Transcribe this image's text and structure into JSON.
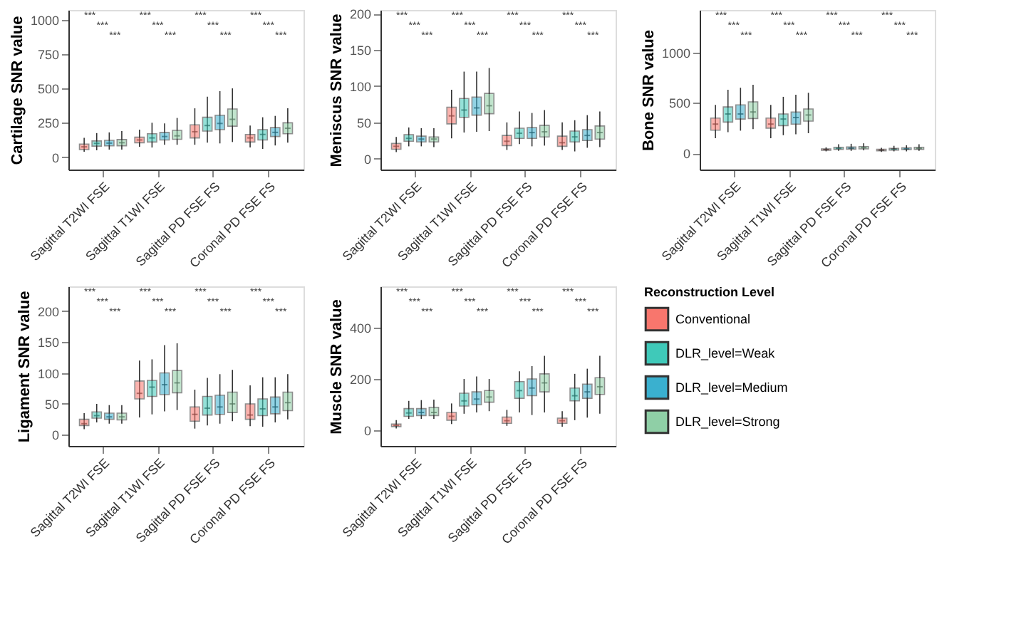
{
  "chart_data": [
    {
      "type": "box",
      "ylabel": "Cartilage SNR value",
      "categories": [
        "Sagittal T2WI FSE",
        "Sagittal T1WI FSE",
        "Sagittal PD FSE FS",
        "Coronal PD FSE FS"
      ],
      "ylim": [
        -90,
        1070
      ],
      "yticks": [
        0,
        250,
        500,
        750,
        1000
      ],
      "grid": false,
      "annotations": [
        "***",
        "***",
        "***",
        "***",
        "***",
        "***",
        "***",
        "***",
        "***",
        "***",
        "***",
        "***"
      ],
      "series": [
        {
          "color": "#f8766d",
          "boxes": [
            {
              "low": 40,
              "q1": 55,
              "median": 75,
              "q3": 95,
              "high": 140
            },
            {
              "low": 75,
              "q1": 105,
              "median": 125,
              "q3": 145,
              "high": 200
            },
            {
              "low": 90,
              "q1": 140,
              "median": 185,
              "q3": 235,
              "high": 355
            },
            {
              "low": 70,
              "q1": 110,
              "median": 140,
              "q3": 165,
              "high": 230
            }
          ]
        },
        {
          "color": "#3fc9b9",
          "boxes": [
            {
              "low": 50,
              "q1": 80,
              "median": 100,
              "q3": 118,
              "high": 175
            },
            {
              "low": 70,
              "q1": 110,
              "median": 140,
              "q3": 170,
              "high": 250
            },
            {
              "low": 105,
              "q1": 190,
              "median": 230,
              "q3": 290,
              "high": 440
            },
            {
              "low": 60,
              "q1": 125,
              "median": 165,
              "q3": 200,
              "high": 290
            }
          ]
        },
        {
          "color": "#3ab0cf",
          "boxes": [
            {
              "low": 55,
              "q1": 82,
              "median": 102,
              "q3": 122,
              "high": 180
            },
            {
              "low": 90,
              "q1": 125,
              "median": 150,
              "q3": 180,
              "high": 245
            },
            {
              "low": 100,
              "q1": 200,
              "median": 245,
              "q3": 305,
              "high": 480
            },
            {
              "low": 85,
              "q1": 150,
              "median": 180,
              "q3": 215,
              "high": 300
            }
          ]
        },
        {
          "color": "#8fcfa6",
          "boxes": [
            {
              "low": 55,
              "q1": 83,
              "median": 105,
              "q3": 128,
              "high": 190
            },
            {
              "low": 90,
              "q1": 130,
              "median": 155,
              "q3": 195,
              "high": 285
            },
            {
              "low": 110,
              "q1": 225,
              "median": 275,
              "q3": 350,
              "high": 500
            },
            {
              "low": 105,
              "q1": 170,
              "median": 210,
              "q3": 250,
              "high": 355
            }
          ]
        }
      ]
    },
    {
      "type": "box",
      "ylabel": "Meniscus SNR value",
      "categories": [
        "Sagittal T2WI FSE",
        "Sagittal T1WI FSE",
        "Sagittal PD FSE FS",
        "Coronal PD FSE FS"
      ],
      "ylim": [
        -15,
        205
      ],
      "yticks": [
        0,
        50,
        100,
        150,
        200
      ],
      "grid": false,
      "annotations": [
        "***",
        "***",
        "***",
        "***",
        "***",
        "***",
        "***",
        "***",
        "***",
        "***",
        "***",
        "***"
      ],
      "series": [
        {
          "color": "#f8766d",
          "boxes": [
            {
              "low": 9,
              "q1": 13,
              "median": 17,
              "q3": 21,
              "high": 30
            },
            {
              "low": 28,
              "q1": 48,
              "median": 59,
              "q3": 71,
              "high": 95
            },
            {
              "low": 12,
              "q1": 18,
              "median": 24,
              "q3": 32,
              "high": 50
            },
            {
              "low": 12,
              "q1": 17,
              "median": 22,
              "q3": 31,
              "high": 50
            }
          ]
        },
        {
          "color": "#3fc9b9",
          "boxes": [
            {
              "low": 17,
              "q1": 24,
              "median": 28,
              "q3": 33,
              "high": 43
            },
            {
              "low": 36,
              "q1": 57,
              "median": 67,
              "q3": 83,
              "high": 120
            },
            {
              "low": 20,
              "q1": 28,
              "median": 35,
              "q3": 42,
              "high": 65
            },
            {
              "low": 10,
              "q1": 23,
              "median": 30,
              "q3": 38,
              "high": 53
            }
          ]
        },
        {
          "color": "#3ab0cf",
          "boxes": [
            {
              "low": 17,
              "q1": 23,
              "median": 27,
              "q3": 31,
              "high": 42
            },
            {
              "low": 37,
              "q1": 60,
              "median": 70,
              "q3": 85,
              "high": 120
            },
            {
              "low": 17,
              "q1": 28,
              "median": 36,
              "q3": 43,
              "high": 63
            },
            {
              "low": 15,
              "q1": 25,
              "median": 32,
              "q3": 40,
              "high": 60
            }
          ]
        },
        {
          "color": "#8fcfa6",
          "boxes": [
            {
              "low": 16,
              "q1": 23,
              "median": 27,
              "q3": 30,
              "high": 42
            },
            {
              "low": 38,
              "q1": 62,
              "median": 73,
              "q3": 90,
              "high": 125
            },
            {
              "low": 18,
              "q1": 30,
              "median": 37,
              "q3": 46,
              "high": 67
            },
            {
              "low": 16,
              "q1": 27,
              "median": 36,
              "q3": 45,
              "high": 65
            }
          ]
        }
      ]
    },
    {
      "type": "box",
      "ylabel": "Bone SNR value",
      "categories": [
        "Sagittal T2WI FSE",
        "Sagittal T1WI FSE",
        "Sagittal PD FSE FS",
        "Coronal PD FSE FS"
      ],
      "ylim": [
        -160,
        1420
      ],
      "yticks": [
        0,
        500,
        1000
      ],
      "grid": false,
      "annotations": [
        "***",
        "***",
        "***",
        "***",
        "***",
        "***",
        "***",
        "***",
        "***",
        "***",
        "***",
        "***"
      ],
      "series": [
        {
          "color": "#f8766d",
          "boxes": [
            {
              "low": 150,
              "q1": 230,
              "median": 290,
              "q3": 350,
              "high": 480
            },
            {
              "low": 150,
              "q1": 250,
              "median": 290,
              "q3": 350,
              "high": 480
            },
            {
              "low": 20,
              "q1": 30,
              "median": 38,
              "q3": 45,
              "high": 60
            },
            {
              "low": 15,
              "q1": 25,
              "median": 33,
              "q3": 40,
              "high": 55
            }
          ]
        },
        {
          "color": "#3fc9b9",
          "boxes": [
            {
              "low": 210,
              "q1": 310,
              "median": 390,
              "q3": 460,
              "high": 630
            },
            {
              "low": 180,
              "q1": 275,
              "median": 340,
              "q3": 390,
              "high": 560
            },
            {
              "low": 25,
              "q1": 40,
              "median": 50,
              "q3": 60,
              "high": 90
            },
            {
              "low": 20,
              "q1": 33,
              "median": 42,
              "q3": 50,
              "high": 75
            }
          ]
        },
        {
          "color": "#3ab0cf",
          "boxes": [
            {
              "low": 225,
              "q1": 340,
              "median": 390,
              "q3": 480,
              "high": 650
            },
            {
              "low": 190,
              "q1": 290,
              "median": 355,
              "q3": 410,
              "high": 580
            },
            {
              "low": 25,
              "q1": 42,
              "median": 52,
              "q3": 63,
              "high": 95
            },
            {
              "low": 20,
              "q1": 37,
              "median": 45,
              "q3": 55,
              "high": 80
            }
          ]
        },
        {
          "color": "#8fcfa6",
          "boxes": [
            {
              "low": 240,
              "q1": 345,
              "median": 410,
              "q3": 510,
              "high": 680
            },
            {
              "low": 200,
              "q1": 320,
              "median": 380,
              "q3": 440,
              "high": 600
            },
            {
              "low": 30,
              "q1": 45,
              "median": 57,
              "q3": 68,
              "high": 100
            },
            {
              "low": 25,
              "q1": 40,
              "median": 50,
              "q3": 60,
              "high": 90
            }
          ]
        }
      ]
    },
    {
      "type": "box",
      "ylabel": "Ligament SNR value",
      "categories": [
        "Sagittal T2WI FSE",
        "Sagittal T1WI FSE",
        "Sagittal PD FSE FS",
        "Coronal PD FSE FS"
      ],
      "ylim": [
        -18,
        240
      ],
      "yticks": [
        0,
        50,
        100,
        150,
        200
      ],
      "grid": false,
      "annotations": [
        "***",
        "***",
        "***",
        "***",
        "***",
        "***",
        "***",
        "***",
        "***",
        "***",
        "***",
        "***"
      ],
      "series": [
        {
          "color": "#f8766d",
          "boxes": [
            {
              "low": 9,
              "q1": 15,
              "median": 18,
              "q3": 25,
              "high": 35
            },
            {
              "low": 28,
              "q1": 58,
              "median": 67,
              "q3": 87,
              "high": 120
            },
            {
              "low": 10,
              "q1": 22,
              "median": 33,
              "q3": 45,
              "high": 73
            },
            {
              "low": 14,
              "q1": 25,
              "median": 32,
              "q3": 50,
              "high": 80
            }
          ]
        },
        {
          "color": "#3fc9b9",
          "boxes": [
            {
              "low": 20,
              "q1": 27,
              "median": 31,
              "q3": 37,
              "high": 50
            },
            {
              "low": 33,
              "q1": 62,
              "median": 77,
              "q3": 88,
              "high": 122
            },
            {
              "low": 15,
              "q1": 32,
              "median": 43,
              "q3": 62,
              "high": 92
            },
            {
              "low": 13,
              "q1": 31,
              "median": 42,
              "q3": 58,
              "high": 93
            }
          ]
        },
        {
          "color": "#3ab0cf",
          "boxes": [
            {
              "low": 18,
              "q1": 25,
              "median": 29,
              "q3": 35,
              "high": 48
            },
            {
              "low": 38,
              "q1": 65,
              "median": 81,
              "q3": 100,
              "high": 145
            },
            {
              "low": 18,
              "q1": 33,
              "median": 45,
              "q3": 64,
              "high": 98
            },
            {
              "low": 20,
              "q1": 34,
              "median": 45,
              "q3": 61,
              "high": 93
            }
          ]
        },
        {
          "color": "#8fcfa6",
          "boxes": [
            {
              "low": 18,
              "q1": 24,
              "median": 29,
              "q3": 35,
              "high": 48
            },
            {
              "low": 40,
              "q1": 68,
              "median": 84,
              "q3": 104,
              "high": 148
            },
            {
              "low": 22,
              "q1": 36,
              "median": 50,
              "q3": 69,
              "high": 105
            },
            {
              "low": 25,
              "q1": 39,
              "median": 52,
              "q3": 69,
              "high": 98
            }
          ]
        }
      ]
    },
    {
      "type": "box",
      "ylabel": "Muscle SNR value",
      "categories": [
        "Sagittal T2WI FSE",
        "Sagittal T1WI FSE",
        "Sagittal PD FSE FS",
        "Coronal PD FSE FS"
      ],
      "ylim": [
        -60,
        560
      ],
      "yticks": [
        0,
        200,
        400
      ],
      "grid": false,
      "legend": "right",
      "legend_title": "Reconstruction Level",
      "annotations": [
        "***",
        "***",
        "***",
        "***",
        "***",
        "***",
        "***",
        "***",
        "***",
        "***",
        "***",
        "***"
      ],
      "series": [
        {
          "name": "Conventional",
          "color": "#f8766d",
          "boxes": [
            {
              "low": 8,
              "q1": 15,
              "median": 20,
              "q3": 25,
              "high": 40
            },
            {
              "low": 25,
              "q1": 40,
              "median": 55,
              "q3": 70,
              "high": 105
            },
            {
              "low": 18,
              "q1": 28,
              "median": 38,
              "q3": 52,
              "high": 80
            },
            {
              "low": 15,
              "q1": 28,
              "median": 38,
              "q3": 48,
              "high": 75
            }
          ]
        },
        {
          "name": "DLR_level=Weak",
          "color": "#3fc9b9",
          "boxes": [
            {
              "low": 45,
              "q1": 55,
              "median": 68,
              "q3": 85,
              "high": 115
            },
            {
              "low": 65,
              "q1": 95,
              "median": 115,
              "q3": 145,
              "high": 200
            },
            {
              "low": 70,
              "q1": 125,
              "median": 155,
              "q3": 190,
              "high": 230
            },
            {
              "low": 40,
              "q1": 115,
              "median": 135,
              "q3": 165,
              "high": 220
            }
          ]
        },
        {
          "name": "DLR_level=Medium",
          "color": "#3ab0cf",
          "boxes": [
            {
              "low": 45,
              "q1": 58,
              "median": 70,
              "q3": 85,
              "high": 118
            },
            {
              "low": 70,
              "q1": 100,
              "median": 122,
              "q3": 150,
              "high": 210
            },
            {
              "low": 60,
              "q1": 135,
              "median": 165,
              "q3": 200,
              "high": 250
            },
            {
              "low": 50,
              "q1": 125,
              "median": 150,
              "q3": 180,
              "high": 240
            }
          ]
        },
        {
          "name": "DLR_level=Strong",
          "color": "#8fcfa6",
          "boxes": [
            {
              "low": 45,
              "q1": 58,
              "median": 70,
              "q3": 90,
              "high": 120
            },
            {
              "low": 75,
              "q1": 110,
              "median": 130,
              "q3": 155,
              "high": 200
            },
            {
              "low": 70,
              "q1": 150,
              "median": 185,
              "q3": 220,
              "high": 290
            },
            {
              "low": 65,
              "q1": 140,
              "median": 170,
              "q3": 205,
              "high": 290
            }
          ]
        }
      ]
    }
  ]
}
